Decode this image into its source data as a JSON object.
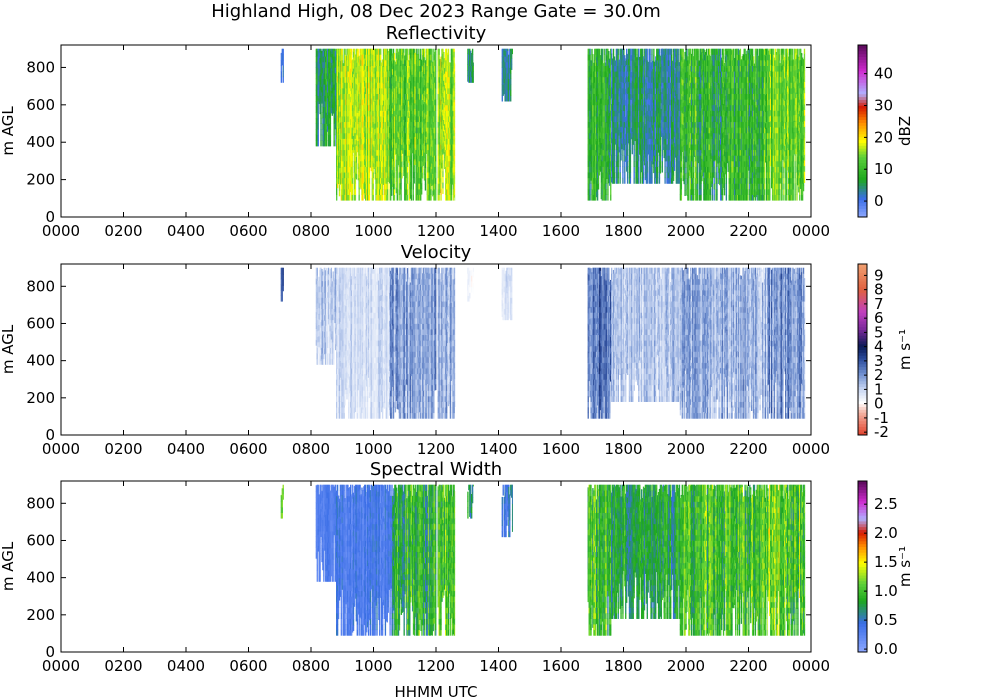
{
  "figure": {
    "suptitle": "Highland High, 08 Dec 2023 Range Gate = 30.0m",
    "xlabel": "HHMM UTC"
  },
  "chart_data": [
    {
      "type": "heatmap",
      "title": "Reflectivity",
      "xlabel": "HHMM UTC",
      "ylabel": "m AGL",
      "x_ticks": [
        "0000",
        "0200",
        "0400",
        "0600",
        "0800",
        "1000",
        "1200",
        "1400",
        "1600",
        "1800",
        "2000",
        "2200",
        "0000"
      ],
      "xlim_hours": [
        0,
        24
      ],
      "y_ticks": [
        0,
        200,
        400,
        600,
        800
      ],
      "ylim": [
        0,
        920
      ],
      "colorbar": {
        "label": "dBZ",
        "ticks": [
          "0",
          "10",
          "20",
          "30",
          "40"
        ],
        "range": [
          -5,
          49
        ],
        "tick_values": [
          0,
          10,
          20,
          30,
          40
        ]
      },
      "colormap": [
        [
          "#8ea8ff",
          0
        ],
        [
          "#3a6ee6",
          0.11
        ],
        [
          "#1ea81e",
          0.22
        ],
        [
          "#5cd03a",
          0.35
        ],
        [
          "#ffff00",
          0.44
        ],
        [
          "#ff8c00",
          0.55
        ],
        [
          "#d61a00",
          0.64
        ],
        [
          "#b0b0ff",
          0.72
        ],
        [
          "#d02bd0",
          0.85
        ],
        [
          "#5a0a5a",
          1.0
        ]
      ],
      "value_range": [
        -5,
        49
      ],
      "data_segments": [
        {
          "start": 7.03,
          "end": 7.12,
          "top": 900,
          "bottom": 720,
          "base": 2,
          "amp": 4
        },
        {
          "start": 8.15,
          "end": 8.8,
          "top": 900,
          "bottom": 380,
          "base": 6,
          "amp": 8
        },
        {
          "start": 8.8,
          "end": 10.5,
          "top": 900,
          "bottom": 90,
          "base": 16,
          "amp": 8
        },
        {
          "start": 10.5,
          "end": 12.0,
          "top": 900,
          "bottom": 90,
          "base": 13,
          "amp": 10
        },
        {
          "start": 12.05,
          "end": 12.6,
          "top": 900,
          "bottom": 90,
          "base": 15,
          "amp": 9
        },
        {
          "start": 13.0,
          "end": 13.2,
          "top": 900,
          "bottom": 720,
          "base": 4,
          "amp": 6
        },
        {
          "start": 14.1,
          "end": 14.45,
          "top": 900,
          "bottom": 620,
          "base": 3,
          "amp": 6
        },
        {
          "start": 16.85,
          "end": 17.6,
          "top": 900,
          "bottom": 90,
          "base": 9,
          "amp": 9
        },
        {
          "start": 17.6,
          "end": 19.8,
          "top": 900,
          "bottom": 180,
          "base": 4,
          "amp": 8
        },
        {
          "start": 19.8,
          "end": 22.6,
          "top": 900,
          "bottom": 90,
          "base": 9,
          "amp": 11
        },
        {
          "start": 22.6,
          "end": 23.8,
          "top": 900,
          "bottom": 90,
          "base": 13,
          "amp": 9
        }
      ]
    },
    {
      "type": "heatmap",
      "title": "Velocity",
      "xlabel": "HHMM UTC",
      "ylabel": "m AGL",
      "x_ticks": [
        "0000",
        "0200",
        "0400",
        "0600",
        "0800",
        "1000",
        "1200",
        "1400",
        "1600",
        "1800",
        "2000",
        "2200",
        "0000"
      ],
      "xlim_hours": [
        0,
        24
      ],
      "y_ticks": [
        0,
        200,
        400,
        600,
        800
      ],
      "ylim": [
        0,
        920
      ],
      "colorbar": {
        "label": "m s⁻¹",
        "ticks": [
          "-2",
          "-1",
          "0",
          "1",
          "2",
          "3",
          "4",
          "5",
          "6",
          "7",
          "8",
          "9"
        ],
        "range": [
          -2.2,
          9.8
        ],
        "tick_values": [
          -2,
          -1,
          0,
          1,
          2,
          3,
          4,
          5,
          6,
          7,
          8,
          9
        ]
      },
      "colormap": [
        [
          "#e0402a",
          0
        ],
        [
          "#f4b0a0",
          0.13
        ],
        [
          "#ffffff",
          0.19
        ],
        [
          "#c8d6f2",
          0.27
        ],
        [
          "#6f8fcf",
          0.36
        ],
        [
          "#2a4a9a",
          0.45
        ],
        [
          "#0a1a55",
          0.52
        ],
        [
          "#7a2a9a",
          0.62
        ],
        [
          "#c040c0",
          0.72
        ],
        [
          "#e06040",
          0.85
        ],
        [
          "#f0a070",
          1.0
        ]
      ],
      "value_range": [
        -2.2,
        9.8
      ],
      "data_segments": [
        {
          "start": 7.03,
          "end": 7.12,
          "top": 900,
          "bottom": 720,
          "base": 3.2,
          "amp": 0.8
        },
        {
          "start": 8.15,
          "end": 8.8,
          "top": 900,
          "bottom": 380,
          "base": 1.2,
          "amp": 1.2
        },
        {
          "start": 8.8,
          "end": 10.5,
          "top": 900,
          "bottom": 90,
          "base": 0.9,
          "amp": 0.8
        },
        {
          "start": 10.5,
          "end": 12.0,
          "top": 900,
          "bottom": 90,
          "base": 1.8,
          "amp": 1.5
        },
        {
          "start": 12.05,
          "end": 12.6,
          "top": 900,
          "bottom": 90,
          "base": 1.6,
          "amp": 1.4
        },
        {
          "start": 13.0,
          "end": 13.2,
          "top": 900,
          "bottom": 720,
          "base": 0.2,
          "amp": 0.6
        },
        {
          "start": 14.1,
          "end": 14.45,
          "top": 900,
          "bottom": 620,
          "base": 0.8,
          "amp": 0.8
        },
        {
          "start": 16.85,
          "end": 17.6,
          "top": 900,
          "bottom": 90,
          "base": 2.6,
          "amp": 1.6
        },
        {
          "start": 17.6,
          "end": 19.8,
          "top": 900,
          "bottom": 180,
          "base": 1.3,
          "amp": 1.3
        },
        {
          "start": 19.8,
          "end": 22.6,
          "top": 900,
          "bottom": 90,
          "base": 1.6,
          "amp": 1.6
        },
        {
          "start": 22.6,
          "end": 23.8,
          "top": 900,
          "bottom": 90,
          "base": 2.0,
          "amp": 1.7
        }
      ]
    },
    {
      "type": "heatmap",
      "title": "Spectral Width",
      "xlabel": "HHMM UTC",
      "ylabel": "m AGL",
      "x_ticks": [
        "0000",
        "0200",
        "0400",
        "0600",
        "0800",
        "1000",
        "1200",
        "1400",
        "1600",
        "1800",
        "2000",
        "2200",
        "0000"
      ],
      "xlim_hours": [
        0,
        24
      ],
      "y_ticks": [
        0,
        200,
        400,
        600,
        800
      ],
      "ylim": [
        0,
        920
      ],
      "colorbar": {
        "label": "m s⁻¹",
        "ticks": [
          "0.0",
          "0.5",
          "1.0",
          "1.5",
          "2.0",
          "2.5"
        ],
        "range": [
          -0.05,
          2.9
        ],
        "tick_values": [
          0.0,
          0.5,
          1.0,
          1.5,
          2.0,
          2.5
        ]
      },
      "colormap": [
        [
          "#8ea8ff",
          0
        ],
        [
          "#3a6ee6",
          0.17
        ],
        [
          "#1ea81e",
          0.3
        ],
        [
          "#5cd03a",
          0.4
        ],
        [
          "#ffff00",
          0.52
        ],
        [
          "#ff8c00",
          0.62
        ],
        [
          "#d61a00",
          0.7
        ],
        [
          "#b0b0ff",
          0.78
        ],
        [
          "#d02bd0",
          0.88
        ],
        [
          "#5a0a5a",
          1.0
        ]
      ],
      "value_range": [
        -0.05,
        2.9
      ],
      "data_segments": [
        {
          "start": 7.03,
          "end": 7.12,
          "top": 900,
          "bottom": 720,
          "base": 1.3,
          "amp": 0.4
        },
        {
          "start": 8.15,
          "end": 8.8,
          "top": 900,
          "bottom": 380,
          "base": 0.3,
          "amp": 0.2
        },
        {
          "start": 8.8,
          "end": 10.6,
          "top": 900,
          "bottom": 90,
          "base": 0.35,
          "amp": 0.3
        },
        {
          "start": 10.6,
          "end": 12.0,
          "top": 900,
          "bottom": 90,
          "base": 0.9,
          "amp": 0.6
        },
        {
          "start": 12.05,
          "end": 12.6,
          "top": 900,
          "bottom": 90,
          "base": 1.0,
          "amp": 0.6
        },
        {
          "start": 13.0,
          "end": 13.2,
          "top": 900,
          "bottom": 720,
          "base": 0.7,
          "amp": 0.4
        },
        {
          "start": 14.1,
          "end": 14.45,
          "top": 900,
          "bottom": 620,
          "base": 0.5,
          "amp": 0.4
        },
        {
          "start": 16.85,
          "end": 17.6,
          "top": 900,
          "bottom": 90,
          "base": 1.0,
          "amp": 0.6
        },
        {
          "start": 17.6,
          "end": 19.8,
          "top": 900,
          "bottom": 180,
          "base": 0.8,
          "amp": 0.5
        },
        {
          "start": 19.8,
          "end": 22.6,
          "top": 900,
          "bottom": 90,
          "base": 1.0,
          "amp": 0.6
        },
        {
          "start": 22.6,
          "end": 23.8,
          "top": 900,
          "bottom": 90,
          "base": 1.1,
          "amp": 0.7
        }
      ]
    }
  ]
}
